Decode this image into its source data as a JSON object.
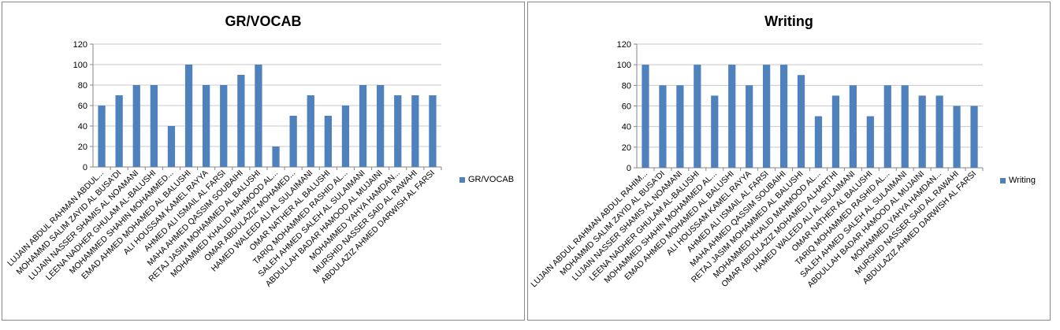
{
  "colors": {
    "bar": "#4F81BD",
    "axis": "#868686",
    "grid": "#C8C8C8",
    "text": "#000000"
  },
  "chart_data": [
    {
      "type": "bar",
      "title": "GR/VOCAB",
      "legend_position": "right",
      "grid": true,
      "ylim": [
        0,
        120
      ],
      "yticks": [
        0,
        20,
        40,
        60,
        80,
        100,
        120
      ],
      "categories": [
        "LUJAIN ABDUL RAHMAN ABDUL...",
        "MOHAMMD SALIM ZAYID AL BUSA'DI",
        "LUJAIN NASSER SHAMIS AL NOAMANI",
        "LEENA NADHER GHULAM AL-BALUSHI",
        "MOHAMMED SHAHIN MOHAMMED...",
        "EMAD AHMED MOHAMED AL BALUSHI",
        "ALI HOUSSAM KAMEL RAYYA",
        "AHMED ALI ISMAIL AL FARSI",
        "MAHA AHMED QASSIM SOUBAIHI",
        "RETAJ JASIM MOHAMMED AL BALUSHI",
        "MOHAMMED KHALID MAHMOOD AL...",
        "OMAR ABDULAZIZ MOHAMED...",
        "HAMED WALEED ALI AL SULAIMANI",
        "OMAR NATHER AL BALUSHI",
        "TARIQ MOHAMMED RASHID AL...",
        "SALEH AHMED SALEH AL SULAIMANI",
        "ABDULLAH BADAR HAMOOD AL MUJAINI",
        "MOHAMMED YAHYA HAMDAN...",
        "MURSHID NASSER SAID AL RAWAHI",
        "ABDULAZIZ AHMED DARWISH AL FARSI"
      ],
      "series": [
        {
          "name": "GR/VOCAB",
          "values": [
            60,
            70,
            80,
            80,
            40,
            100,
            80,
            80,
            90,
            100,
            20,
            50,
            70,
            50,
            60,
            80,
            80,
            70,
            70,
            70
          ]
        }
      ]
    },
    {
      "type": "bar",
      "title": "Writing",
      "legend_position": "right",
      "grid": true,
      "ylim": [
        0,
        120
      ],
      "yticks": [
        0,
        20,
        40,
        60,
        80,
        100,
        120
      ],
      "categories": [
        "LUJAIN ABDUL RAHMAN ABDUL RAHIM...",
        "MOHAMMD SALIM ZAYID AL BUSA'DI",
        "LUJAIN NASSER SHAMIS AL NOAMANI",
        "LEENA NADHER GHULAM AL-BALUSHI",
        "MOHAMMED SHAHIN MOHAMMED AL...",
        "EMAD AHMED MOHAMED AL BALUSHI",
        "ALI HOUSSAM KAMEL RAYYA",
        "AHMED ALI ISMAIL AL FARSI",
        "MAHA AHMED QASSIM SOUBAIHI",
        "RETAJ JASIM MOHAMMED AL BALUSHI",
        "MOHAMMED KHALID MAHMOOD AL...",
        "OMAR ABDULAZIZ MOHAMED ALHARTHI",
        "HAMED WALEED ALI AL SULAIMANI",
        "OMAR NATHER AL BALUSHI",
        "TARIQ MOHAMMED RASHID AL...",
        "SALEH AHMED SALEH AL SULAIMANI",
        "ABDULLAH BADAR HAMOOD AL MUJAINI",
        "MOHAMMED YAHYA HAMDAN...",
        "MURSHID NASSER SAID AL RAWAHI",
        "ABDULAZIZ AHMED DARWISH AL FARSI"
      ],
      "series": [
        {
          "name": "Writing",
          "values": [
            100,
            80,
            80,
            100,
            70,
            100,
            80,
            100,
            100,
            90,
            50,
            70,
            80,
            50,
            80,
            80,
            70,
            70,
            60,
            60
          ]
        }
      ]
    }
  ]
}
